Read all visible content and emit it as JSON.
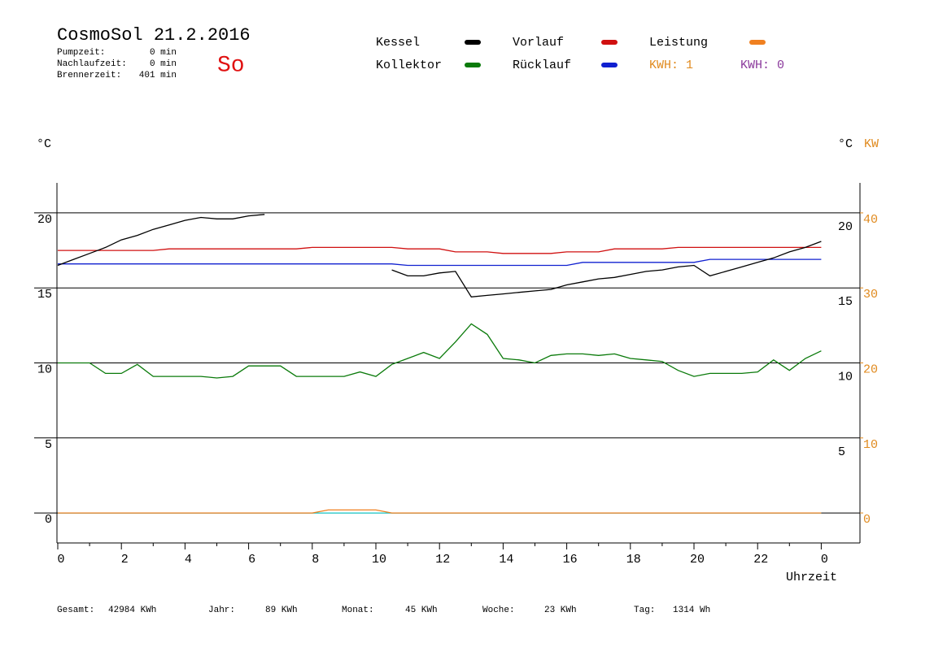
{
  "chart_data": {
    "type": "line",
    "title": "CosmoSol 21.2.2016",
    "day": "So",
    "info": [
      {
        "label": "Pumpzeit:",
        "value": "0 min"
      },
      {
        "label": "Nachlaufzeit:",
        "value": "0 min"
      },
      {
        "label": "Brennerzeit:",
        "value": "401 min"
      }
    ],
    "kwh_labels": [
      {
        "text": "KWH: 1",
        "color": "#e08a1e"
      },
      {
        "text": "KWH: 0",
        "color": "#8b3a9c"
      }
    ],
    "y_label": "°C",
    "y_label_right": "°C",
    "y2_label": "KW",
    "x_label": "Uhrzeit",
    "xlim": [
      0,
      25.2
    ],
    "xticks": [
      0,
      2,
      4,
      6,
      8,
      10,
      12,
      14,
      16,
      18,
      20,
      22,
      {
        "value": 24,
        "label": "0"
      }
    ],
    "ylim": [
      -2,
      22
    ],
    "yticks": [
      0,
      5,
      10,
      15,
      20
    ],
    "yticks_right": [
      5,
      10,
      15,
      20
    ],
    "y2lim": [
      -4,
      44
    ],
    "y2ticks": [
      0,
      10,
      20,
      30,
      40
    ],
    "grid": true,
    "x": [
      0,
      0.5,
      1,
      1.5,
      2,
      2.5,
      3,
      3.5,
      4,
      4.5,
      5,
      5.5,
      6,
      6.5,
      7,
      7.5,
      8,
      8.5,
      9,
      9.5,
      10,
      10.5,
      11,
      11.5,
      12,
      12.5,
      13,
      13.5,
      14,
      14.5,
      15,
      15.5,
      16,
      16.5,
      17,
      17.5,
      18,
      18.5,
      19,
      19.5,
      20,
      20.5,
      21,
      21.5,
      22,
      22.5,
      23,
      23.5,
      24
    ],
    "series": [
      {
        "name": "Kessel",
        "color": "#000000",
        "values": [
          16.5,
          16.9,
          17.3,
          17.7,
          18.2,
          18.5,
          18.9,
          19.2,
          19.5,
          19.7,
          19.6,
          19.6,
          19.8,
          19.9,
          null,
          null,
          null,
          null,
          null,
          null,
          null,
          16.2,
          15.8,
          15.8,
          16.0,
          16.1,
          14.4,
          14.5,
          14.6,
          14.7,
          14.8,
          14.9,
          15.2,
          15.4,
          15.6,
          15.7,
          15.9,
          16.1,
          16.2,
          16.4,
          16.5,
          15.8,
          16.1,
          16.4,
          16.7,
          17.0,
          17.4,
          17.7,
          18.1
        ]
      },
      {
        "name": "Kollektor",
        "color": "#0a7a0a",
        "values": [
          10.0,
          10.0,
          10.0,
          9.3,
          9.3,
          9.9,
          9.1,
          9.1,
          9.1,
          9.1,
          9.0,
          9.1,
          9.8,
          9.8,
          9.8,
          9.1,
          9.1,
          9.1,
          9.1,
          9.4,
          9.1,
          9.9,
          10.3,
          10.7,
          10.3,
          11.4,
          12.6,
          11.9,
          10.3,
          10.2,
          10.0,
          10.5,
          10.6,
          10.6,
          10.5,
          10.6,
          10.3,
          10.2,
          10.1,
          9.5,
          9.1,
          9.3,
          9.3,
          9.3,
          9.4,
          10.2,
          9.5,
          10.3,
          10.8
        ]
      },
      {
        "name": "Vorlauf",
        "color": "#d01010",
        "values": [
          17.5,
          17.5,
          17.5,
          17.5,
          17.5,
          17.5,
          17.5,
          17.6,
          17.6,
          17.6,
          17.6,
          17.6,
          17.6,
          17.6,
          17.6,
          17.6,
          17.7,
          17.7,
          17.7,
          17.7,
          17.7,
          17.7,
          17.6,
          17.6,
          17.6,
          17.4,
          17.4,
          17.4,
          17.3,
          17.3,
          17.3,
          17.3,
          17.4,
          17.4,
          17.4,
          17.6,
          17.6,
          17.6,
          17.6,
          17.7,
          17.7,
          17.7,
          17.7,
          17.7,
          17.7,
          17.7,
          17.7,
          17.7,
          17.7
        ]
      },
      {
        "name": "Rücklauf",
        "color": "#1020d0",
        "values": [
          16.6,
          16.6,
          16.6,
          16.6,
          16.6,
          16.6,
          16.6,
          16.6,
          16.6,
          16.6,
          16.6,
          16.6,
          16.6,
          16.6,
          16.6,
          16.6,
          16.6,
          16.6,
          16.6,
          16.6,
          16.6,
          16.6,
          16.5,
          16.5,
          16.5,
          16.5,
          16.5,
          16.5,
          16.5,
          16.5,
          16.5,
          16.5,
          16.5,
          16.7,
          16.7,
          16.7,
          16.7,
          16.7,
          16.7,
          16.7,
          16.7,
          16.9,
          16.9,
          16.9,
          16.9,
          16.9,
          16.9,
          16.9,
          16.9
        ]
      },
      {
        "name": "Leistung",
        "color": "#f08020",
        "axis": "y2",
        "values": [
          0,
          0,
          0,
          0,
          0,
          0,
          0,
          0,
          0,
          0,
          0,
          0,
          0,
          0,
          0,
          0,
          0,
          0.4,
          0.4,
          0.4,
          0.4,
          0,
          0,
          0,
          0,
          0,
          0,
          0,
          0,
          0,
          0,
          0,
          0,
          0,
          0,
          0,
          0,
          0,
          0,
          0,
          0,
          0,
          0,
          0,
          0,
          0,
          0,
          0,
          0
        ]
      },
      {
        "color": "#20d0d0",
        "values": [
          0,
          0,
          0,
          0,
          0,
          0,
          0,
          0,
          0,
          0,
          0,
          0,
          0,
          0,
          0,
          0,
          0,
          0,
          0,
          0,
          0,
          0,
          0,
          0,
          0,
          0,
          0,
          0,
          0,
          0,
          0,
          0,
          0,
          0,
          0,
          0,
          0,
          0,
          0,
          0,
          0,
          0,
          0,
          0,
          0,
          0,
          0,
          0,
          0
        ]
      }
    ],
    "stats": [
      {
        "label": "Gesamt:",
        "value": "42984 KWh"
      },
      {
        "label": "Jahr:",
        "value": "89 KWh"
      },
      {
        "label": "Monat:",
        "value": "45 KWh"
      },
      {
        "label": "Woche:",
        "value": "23 KWh"
      },
      {
        "label": "Tag:",
        "value": "1314 Wh"
      }
    ]
  }
}
